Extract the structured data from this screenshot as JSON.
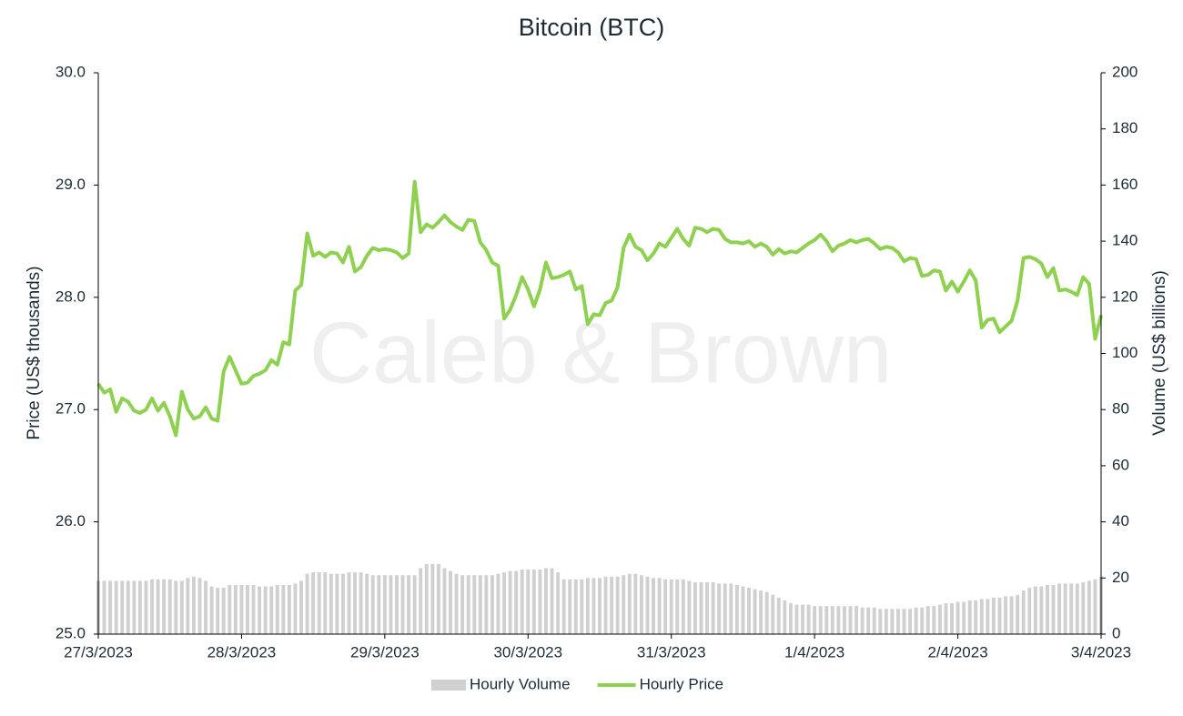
{
  "chart_data": {
    "type": "bar-line",
    "title": "Bitcoin (BTC)",
    "watermark": "Caleb & Brown",
    "ylabel": "Price (US$ thousands)",
    "y2label": "Volume (US$ billions)",
    "xlim": [
      0,
      168
    ],
    "xticks": [
      {
        "value": 0,
        "label": "27/3/2023"
      },
      {
        "value": 24,
        "label": "28/3/2023"
      },
      {
        "value": 48,
        "label": "29/3/2023"
      },
      {
        "value": 72,
        "label": "30/3/2023"
      },
      {
        "value": 96,
        "label": "31/3/2023"
      },
      {
        "value": 120,
        "label": "1/4/2023"
      },
      {
        "value": 144,
        "label": "2/4/2023"
      },
      {
        "value": 168,
        "label": "3/4/2023"
      }
    ],
    "ylim": [
      25,
      30
    ],
    "yticks": [
      {
        "value": 25,
        "label": "25.0"
      },
      {
        "value": 26,
        "label": "26.0"
      },
      {
        "value": 27,
        "label": "27.0"
      },
      {
        "value": 28,
        "label": "28.0"
      },
      {
        "value": 29,
        "label": "29.0"
      },
      {
        "value": 30,
        "label": "30.0"
      }
    ],
    "y2lim": [
      0,
      200
    ],
    "y2ticks": [
      0,
      20,
      40,
      60,
      80,
      100,
      120,
      140,
      160,
      180,
      200
    ],
    "legend": "bottom",
    "x": [
      0,
      1,
      2,
      3,
      4,
      5,
      6,
      7,
      8,
      9,
      10,
      11,
      12,
      13,
      14,
      15,
      16,
      17,
      18,
      19,
      20,
      21,
      22,
      23,
      24,
      25,
      26,
      27,
      28,
      29,
      30,
      31,
      32,
      33,
      34,
      35,
      36,
      37,
      38,
      39,
      40,
      41,
      42,
      43,
      44,
      45,
      46,
      47,
      48,
      49,
      50,
      51,
      52,
      53,
      54,
      55,
      56,
      57,
      58,
      59,
      60,
      61,
      62,
      63,
      64,
      65,
      66,
      67,
      68,
      69,
      70,
      71,
      72,
      73,
      74,
      75,
      76,
      77,
      78,
      79,
      80,
      81,
      82,
      83,
      84,
      85,
      86,
      87,
      88,
      89,
      90,
      91,
      92,
      93,
      94,
      95,
      96,
      97,
      98,
      99,
      100,
      101,
      102,
      103,
      104,
      105,
      106,
      107,
      108,
      109,
      110,
      111,
      112,
      113,
      114,
      115,
      116,
      117,
      118,
      119,
      120,
      121,
      122,
      123,
      124,
      125,
      126,
      127,
      128,
      129,
      130,
      131,
      132,
      133,
      134,
      135,
      136,
      137,
      138,
      139,
      140,
      141,
      142,
      143,
      144,
      145,
      146,
      147,
      148,
      149,
      150,
      151,
      152,
      153,
      154,
      155,
      156,
      157,
      158,
      159,
      160,
      161,
      162,
      163,
      164,
      165,
      166,
      167,
      168
    ],
    "series": [
      {
        "name": "Hourly Volume",
        "kind": "bar",
        "axis": "y2",
        "color": "#d0d0d0",
        "values": [
          19,
          19,
          19,
          19,
          19,
          19,
          19,
          19,
          19,
          19.5,
          19.5,
          19.5,
          19.5,
          19,
          19,
          20,
          20.5,
          20,
          19,
          17,
          16.5,
          16.5,
          17.5,
          17.5,
          17.5,
          17.5,
          17.5,
          17,
          17,
          17,
          17.5,
          17.5,
          17.5,
          18,
          19,
          21.5,
          22,
          22,
          22,
          21.5,
          21.5,
          21.5,
          22,
          22,
          22,
          21.5,
          21,
          21,
          21,
          21,
          21,
          21,
          21,
          21,
          23.5,
          25,
          25,
          25,
          23.5,
          22.5,
          21.5,
          21,
          21,
          21,
          21,
          21,
          21,
          21.5,
          22,
          22.5,
          22.5,
          23,
          23,
          23,
          23,
          23.5,
          23.5,
          22,
          19.5,
          19.5,
          19.5,
          19.5,
          20,
          20,
          20,
          20.5,
          20.5,
          20.5,
          21,
          21.5,
          21.5,
          21,
          20.5,
          20,
          20,
          19.5,
          19.5,
          19.5,
          19.5,
          19,
          18.5,
          18.5,
          18.5,
          18.5,
          18,
          18,
          18,
          17.5,
          17,
          16.5,
          16,
          15.5,
          15,
          14,
          13,
          12,
          11,
          10.5,
          10.5,
          10.5,
          10,
          10,
          10,
          10,
          10,
          10,
          10,
          10,
          9.5,
          9.5,
          9.5,
          9,
          9,
          9,
          9,
          9,
          9,
          9.5,
          9.5,
          10,
          10,
          10.5,
          11,
          11,
          11.5,
          11.5,
          12,
          12,
          12.5,
          12.5,
          13,
          13,
          13.5,
          13.5,
          14,
          15.5,
          16.5,
          17,
          17,
          17.5,
          17.5,
          18,
          18,
          18,
          18,
          18.5,
          19,
          19.5,
          20.5
        ]
      },
      {
        "name": "Hourly Price",
        "kind": "line",
        "color": "#8ed150",
        "values": [
          27.23,
          27.15,
          27.18,
          26.98,
          27.1,
          27.07,
          26.99,
          26.97,
          27.0,
          27.1,
          26.99,
          27.06,
          26.94,
          26.77,
          27.16,
          27.0,
          26.92,
          26.94,
          27.02,
          26.92,
          26.9,
          27.34,
          27.47,
          27.35,
          27.23,
          27.24,
          27.3,
          27.32,
          27.35,
          27.44,
          27.4,
          27.6,
          27.58,
          28.06,
          28.11,
          28.57,
          28.37,
          28.4,
          28.36,
          28.4,
          28.39,
          28.31,
          28.45,
          28.23,
          28.27,
          28.37,
          28.44,
          28.42,
          28.43,
          28.42,
          28.4,
          28.35,
          28.39,
          29.03,
          28.58,
          28.65,
          28.62,
          28.67,
          28.73,
          28.67,
          28.63,
          28.6,
          28.69,
          28.68,
          28.49,
          28.42,
          28.31,
          28.28,
          27.81,
          27.89,
          28.02,
          28.18,
          28.07,
          27.92,
          28.07,
          28.31,
          28.17,
          28.18,
          28.2,
          28.23,
          28.07,
          28.1,
          27.76,
          27.85,
          27.84,
          27.95,
          27.97,
          28.09,
          28.44,
          28.56,
          28.45,
          28.42,
          28.33,
          28.39,
          28.48,
          28.45,
          28.53,
          28.61,
          28.52,
          28.46,
          28.62,
          28.61,
          28.58,
          28.61,
          28.6,
          28.52,
          28.49,
          28.49,
          28.48,
          28.5,
          28.45,
          28.48,
          28.45,
          28.38,
          28.43,
          28.39,
          28.41,
          28.4,
          28.44,
          28.48,
          28.51,
          28.56,
          28.5,
          28.41,
          28.46,
          28.48,
          28.51,
          28.49,
          28.51,
          28.52,
          28.48,
          28.43,
          28.45,
          28.44,
          28.4,
          28.32,
          28.35,
          28.34,
          28.19,
          28.2,
          28.24,
          28.23,
          28.06,
          28.14,
          28.05,
          28.14,
          28.24,
          28.15,
          27.73,
          27.8,
          27.81,
          27.69,
          27.74,
          27.79,
          27.97,
          28.35,
          28.36,
          28.34,
          28.3,
          28.18,
          28.26,
          28.06,
          28.07,
          28.05,
          28.02,
          28.18,
          28.12,
          27.63,
          27.84
        ]
      }
    ]
  }
}
